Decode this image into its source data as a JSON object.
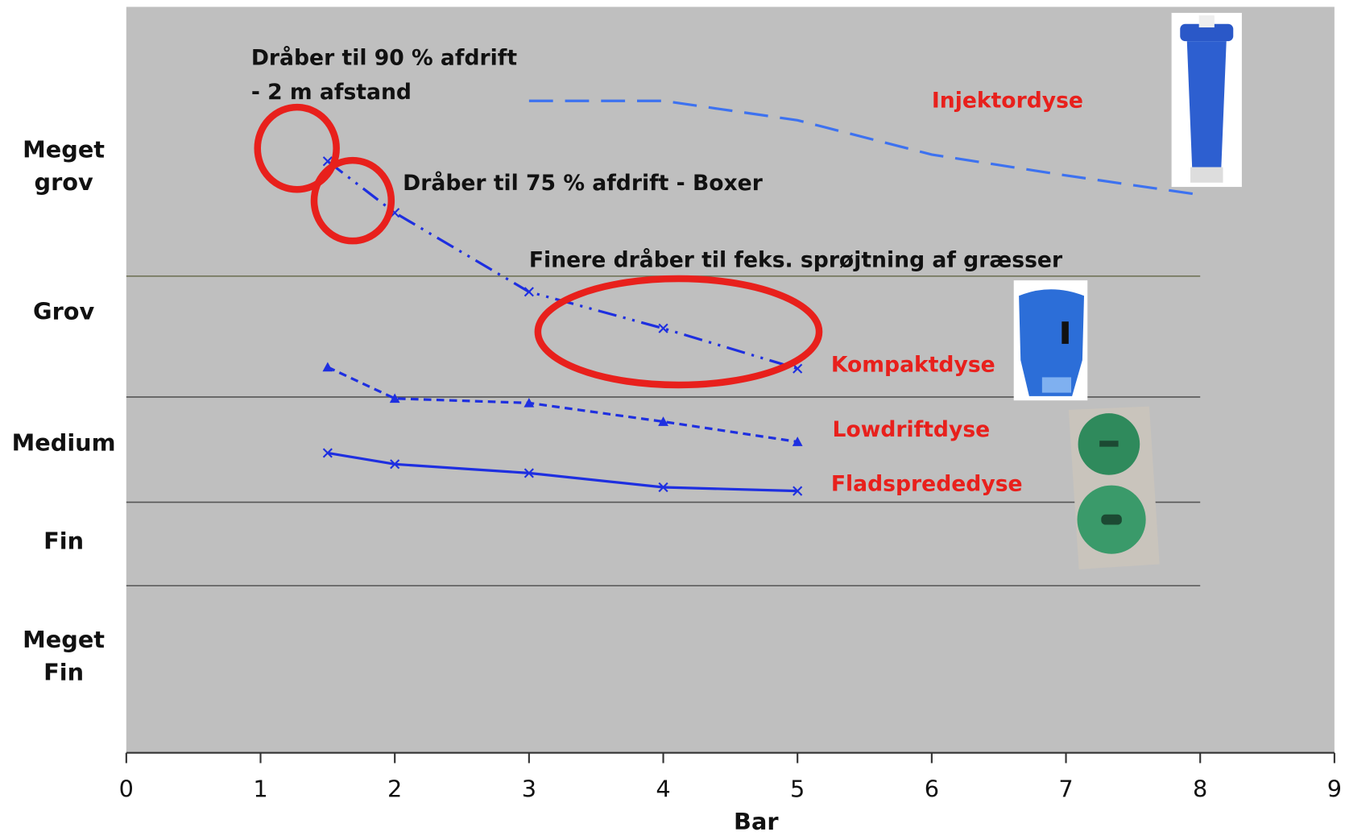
{
  "chart_data": {
    "type": "line",
    "xlabel": "Bar",
    "xlim": [
      0,
      9
    ],
    "xticks": [
      0,
      1,
      2,
      3,
      4,
      5,
      6,
      7,
      8,
      9
    ],
    "ylim": [
      0,
      10
    ],
    "yticks": [
      {
        "value": 7.85,
        "label": [
          "Meget",
          "grov"
        ]
      },
      {
        "value": 5.9,
        "label": [
          "Grov"
        ]
      },
      {
        "value": 4.14,
        "label": [
          "Medium"
        ]
      },
      {
        "value": 2.82,
        "label": [
          "Fin"
        ]
      },
      {
        "value": 1.28,
        "label": [
          "Meget",
          "Fin"
        ]
      }
    ],
    "boundaries": [
      6.39,
      4.77,
      3.36,
      2.24
    ],
    "label_color": "#e8201c",
    "series": [
      {
        "name": "Injektordyse",
        "color": "#3d72f0",
        "dash": "28,14",
        "marker": "none",
        "x": [
          3,
          4,
          5,
          6,
          7,
          8
        ],
        "values": [
          8.74,
          8.74,
          8.48,
          8.02,
          7.74,
          7.48
        ],
        "label_at": [
          6.0,
          8.73
        ]
      },
      {
        "name": "Kompaktdyse",
        "color": "#1e2fe0",
        "dash": "22,8,3,8,3,8",
        "marker": "x",
        "x": [
          1.5,
          2,
          3,
          4,
          5
        ],
        "values": [
          7.93,
          7.24,
          6.18,
          5.69,
          5.15
        ],
        "label_at": [
          5.25,
          5.19
        ]
      },
      {
        "name": "Lowdriftdyse",
        "color": "#1e2fe0",
        "dash": "9,6",
        "marker": "triangle",
        "x": [
          1.5,
          2,
          3,
          4,
          5
        ],
        "values": [
          5.17,
          4.75,
          4.69,
          4.44,
          4.17
        ],
        "label_at": [
          5.26,
          4.32
        ]
      },
      {
        "name": "Fladsprededyse",
        "color": "#1e2fe0",
        "dash": "",
        "marker": "x",
        "x": [
          1.5,
          2,
          3,
          4,
          5
        ],
        "values": [
          4.02,
          3.87,
          3.75,
          3.56,
          3.51
        ],
        "label_at": [
          5.25,
          3.59
        ]
      }
    ],
    "annotations": [
      {
        "text": [
          "Dråber til 90 % afdrift",
          "- 2 m afstand"
        ],
        "at": [
          0.93,
          9.31
        ]
      },
      {
        "text": [
          "Dråber til 75 % afdrift - Boxer"
        ],
        "at": [
          2.06,
          7.63
        ]
      },
      {
        "text": [
          "Finere dråber til feks. sprøjtning af græsser"
        ],
        "at": [
          3.0,
          6.6
        ]
      }
    ]
  }
}
